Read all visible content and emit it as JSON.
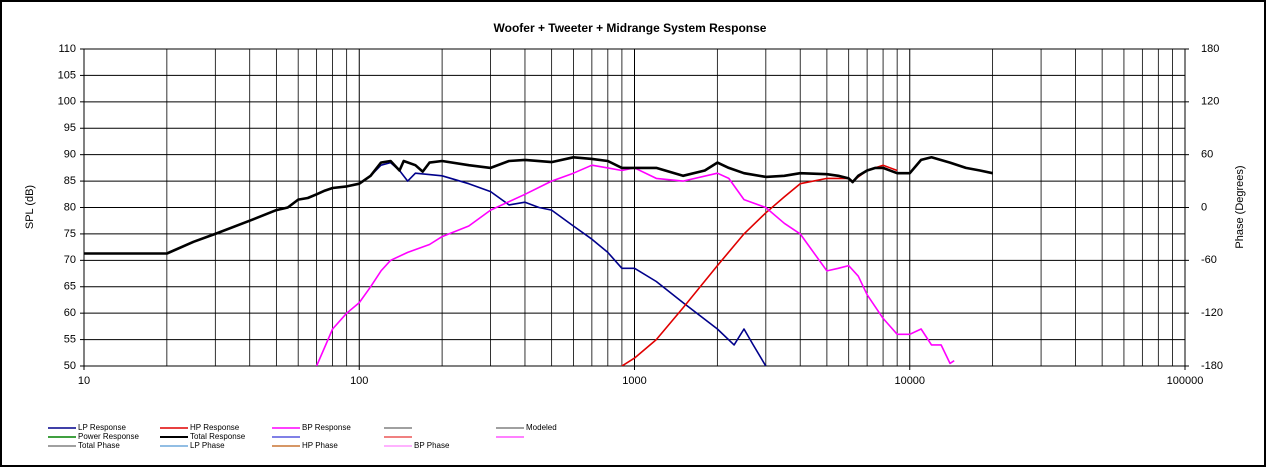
{
  "chart_data": {
    "type": "line",
    "title": "Woofer  + Tweeter  + Midrange  System  Response",
    "y_label": "SPL (dB)",
    "y2_label": "Phase (Degrees)",
    "log_x": true,
    "grid": true,
    "minor_grid": true,
    "xlim": [
      10,
      100000
    ],
    "xticks": [
      10,
      100,
      1000,
      10000,
      100000
    ],
    "ylim": [
      50,
      110
    ],
    "yticks": [
      50,
      55,
      60,
      65,
      70,
      75,
      80,
      85,
      90,
      95,
      100,
      105,
      110
    ],
    "y2lim": [
      -180,
      180
    ],
    "y2ticks": [
      -180,
      -120,
      -60,
      0,
      60,
      120,
      180
    ],
    "series": [
      {
        "name": "LP Response",
        "color": "#00008b",
        "x": [
          100,
          110,
          120,
          130,
          140,
          150,
          160,
          200,
          250,
          300,
          350,
          400,
          450,
          500,
          600,
          700,
          800,
          900,
          1000,
          1200,
          1500,
          2000,
          2300,
          2500,
          2700,
          3000
        ],
        "values": [
          84.5,
          86,
          88,
          88.5,
          87,
          85,
          86.5,
          86,
          84.5,
          83,
          80.5,
          81,
          80,
          79.5,
          76.5,
          74,
          71.5,
          68.5,
          68.5,
          66,
          62,
          57,
          54,
          57,
          54,
          50
        ]
      },
      {
        "name": "HP Response",
        "color": "#e00000",
        "x": [
          900,
          1000,
          1200,
          1500,
          2000,
          2500,
          3000,
          3500,
          4000,
          5000,
          6000,
          6200,
          7000,
          8000,
          9000
        ],
        "values": [
          50,
          51.5,
          55,
          61,
          69,
          75,
          79,
          82,
          84.5,
          85.5,
          85.5,
          85,
          87,
          88,
          87
        ]
      },
      {
        "name": "BP Response",
        "color": "#ff00ff",
        "x": [
          70,
          80,
          90,
          100,
          110,
          120,
          130,
          150,
          180,
          200,
          250,
          300,
          400,
          500,
          600,
          700,
          800,
          900,
          1000,
          1200,
          1500,
          2000,
          2200,
          2500,
          3000,
          3500,
          4000,
          5000,
          5500,
          6000,
          6500,
          7000,
          8000,
          9000,
          10000,
          11000,
          12000,
          13000,
          14000,
          14500
        ],
        "values": [
          50,
          57,
          60,
          62,
          65,
          68,
          70,
          71.5,
          73,
          74.5,
          76.5,
          79.5,
          82.5,
          85,
          86.5,
          88,
          87.5,
          87,
          87.5,
          85.5,
          85,
          86.5,
          85.5,
          81.5,
          80,
          77,
          75,
          68,
          68.5,
          69,
          67,
          63.5,
          59,
          56,
          56,
          57,
          54,
          54,
          50.5,
          51
        ]
      },
      {
        "name": "Total Response",
        "color": "#000000",
        "x": [
          10,
          20,
          25,
          30,
          40,
          50,
          55,
          60,
          65,
          70,
          75,
          80,
          90,
          100,
          110,
          120,
          130,
          140,
          145,
          160,
          170,
          180,
          200,
          250,
          300,
          350,
          400,
          500,
          600,
          700,
          800,
          900,
          1000,
          1200,
          1500,
          1800,
          2000,
          2200,
          2500,
          3000,
          3500,
          4000,
          5000,
          5500,
          6000,
          6200,
          6500,
          7000,
          7500,
          8000,
          9000,
          10000,
          11000,
          12000,
          14000,
          16000,
          18000,
          20000
        ],
        "values": [
          71.3,
          71.3,
          73.5,
          75,
          77.5,
          79.5,
          80,
          81.5,
          81.8,
          82.5,
          83.2,
          83.7,
          84,
          84.5,
          86,
          88.5,
          88.8,
          87,
          88.8,
          88,
          86.8,
          88.5,
          88.8,
          88,
          87.5,
          88.8,
          89,
          88.6,
          89.5,
          89.2,
          88.8,
          87.5,
          87.5,
          87.5,
          86,
          87,
          88.5,
          87.5,
          86.5,
          85.8,
          86,
          86.5,
          86.3,
          86,
          85.5,
          84.8,
          86,
          87,
          87.5,
          87.5,
          86.5,
          86.5,
          89,
          89.5,
          88.5,
          87.5,
          87,
          86.5
        ]
      }
    ],
    "legend_only": [
      {
        "name": "Modeled",
        "color": "#808080"
      },
      {
        "name": "Power Response",
        "color": "#008000"
      },
      {
        "name": "Total Phase",
        "color": "#808080"
      },
      {
        "name": "LP Phase",
        "color": "#6fa8dc"
      },
      {
        "name": "HP Phase",
        "color": "#c87533"
      },
      {
        "name": "BP Phase",
        "color": "#ff99ff"
      }
    ]
  }
}
